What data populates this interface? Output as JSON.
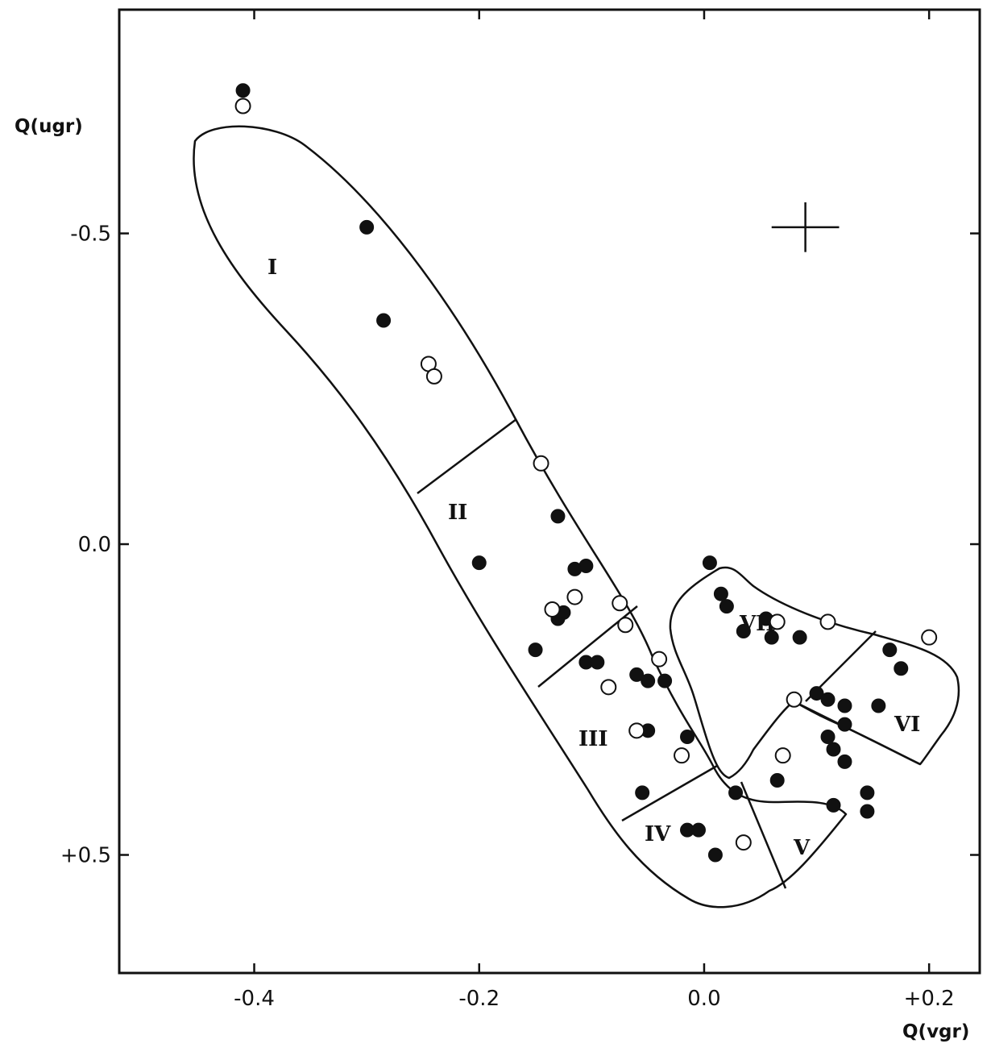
{
  "chart_data": {
    "type": "scatter",
    "title": "",
    "xlabel": "Q(vgr)",
    "ylabel": "Q(ugr)",
    "xlim": [
      -0.52,
      0.245
    ],
    "ylim": [
      -0.86,
      0.69
    ],
    "y_inverted": true,
    "grid": false,
    "x_ticks": [
      {
        "value": -0.4,
        "label": "-0.4"
      },
      {
        "value": -0.2,
        "label": "-0.2"
      },
      {
        "value": 0.0,
        "label": "0.0"
      },
      {
        "value": 0.2,
        "label": "+0.2"
      }
    ],
    "y_ticks": [
      {
        "value": -0.5,
        "label": "-0.5"
      },
      {
        "value": 0.0,
        "label": "0.0"
      },
      {
        "value": 0.5,
        "label": "+0.5"
      }
    ],
    "series": [
      {
        "marker": "filled-circle",
        "points": [
          [
            -0.41,
            -0.73
          ],
          [
            -0.3,
            -0.51
          ],
          [
            -0.285,
            -0.36
          ],
          [
            -0.2,
            0.03
          ],
          [
            -0.13,
            -0.045
          ],
          [
            -0.115,
            0.04
          ],
          [
            -0.105,
            0.035
          ],
          [
            -0.13,
            0.12
          ],
          [
            -0.125,
            0.11
          ],
          [
            -0.15,
            0.17
          ],
          [
            -0.105,
            0.19
          ],
          [
            -0.095,
            0.19
          ],
          [
            -0.06,
            0.21
          ],
          [
            -0.05,
            0.22
          ],
          [
            -0.035,
            0.22
          ],
          [
            -0.05,
            0.3
          ],
          [
            -0.015,
            0.31
          ],
          [
            -0.055,
            0.4
          ],
          [
            -0.015,
            0.46
          ],
          [
            -0.005,
            0.46
          ],
          [
            0.01,
            0.5
          ],
          [
            0.005,
            0.03
          ],
          [
            0.015,
            0.08
          ],
          [
            0.02,
            0.1
          ],
          [
            0.035,
            0.14
          ],
          [
            0.055,
            0.12
          ],
          [
            0.06,
            0.15
          ],
          [
            0.085,
            0.15
          ],
          [
            0.1,
            0.24
          ],
          [
            0.11,
            0.25
          ],
          [
            0.125,
            0.26
          ],
          [
            0.125,
            0.29
          ],
          [
            0.11,
            0.31
          ],
          [
            0.115,
            0.33
          ],
          [
            0.125,
            0.35
          ],
          [
            0.065,
            0.38
          ],
          [
            0.115,
            0.42
          ],
          [
            0.145,
            0.4
          ],
          [
            0.145,
            0.43
          ],
          [
            0.155,
            0.26
          ],
          [
            0.165,
            0.17
          ],
          [
            0.175,
            0.2
          ],
          [
            0.028,
            0.4
          ]
        ]
      },
      {
        "marker": "open-circle",
        "points": [
          [
            -0.41,
            -0.705
          ],
          [
            -0.245,
            -0.29
          ],
          [
            -0.24,
            -0.27
          ],
          [
            -0.145,
            -0.13
          ],
          [
            -0.115,
            0.085
          ],
          [
            -0.135,
            0.105
          ],
          [
            -0.075,
            0.095
          ],
          [
            -0.07,
            0.13
          ],
          [
            -0.085,
            0.23
          ],
          [
            -0.04,
            0.185
          ],
          [
            -0.06,
            0.3
          ],
          [
            -0.02,
            0.34
          ],
          [
            0.035,
            0.48
          ],
          [
            0.07,
            0.34
          ],
          [
            0.08,
            0.25
          ],
          [
            0.065,
            0.125
          ],
          [
            0.11,
            0.125
          ],
          [
            0.2,
            0.15
          ]
        ]
      }
    ],
    "regions": [
      "I",
      "II",
      "III",
      "IV",
      "V",
      "VI",
      "VII"
    ],
    "error_bar": {
      "x": 0.09,
      "y": -0.51,
      "dx": 0.03,
      "dy": 0.04
    }
  }
}
